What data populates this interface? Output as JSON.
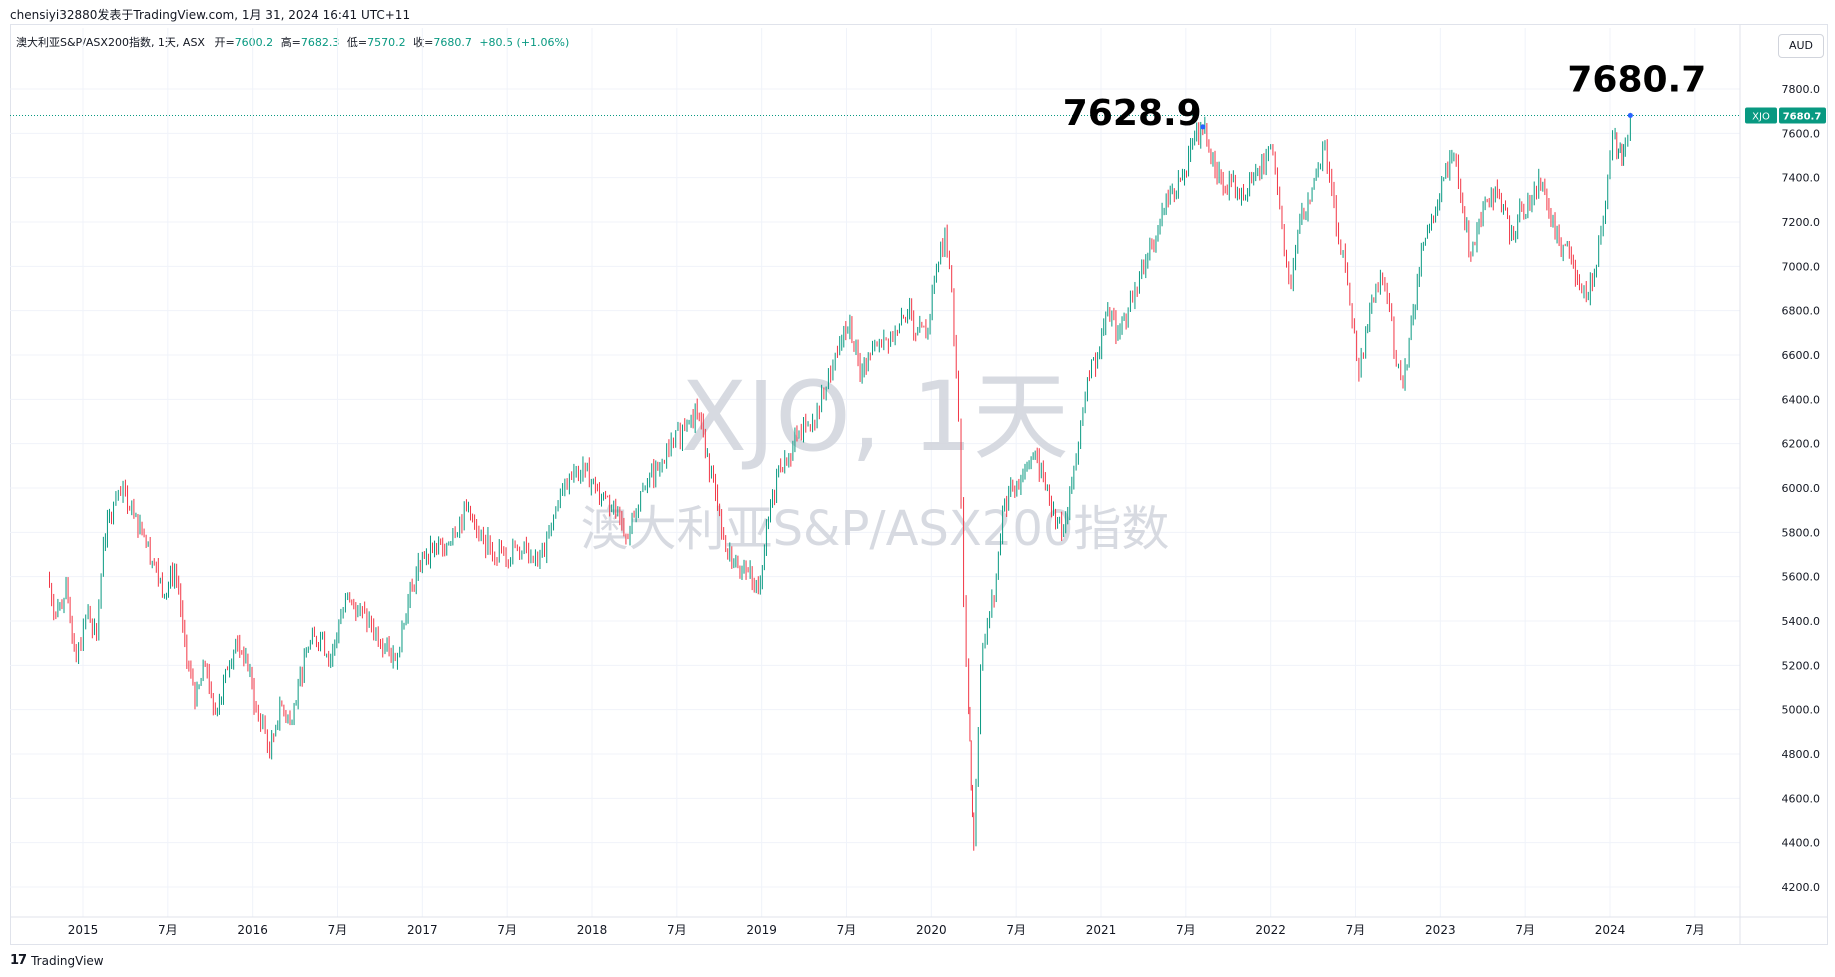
{
  "header": {
    "publisher_line": "chensiyi32880发表于TradingView.com, 1月 31, 2024 16:41 UTC+11"
  },
  "legend": {
    "symbol_line": "澳大利亚S&P/ASX200指数, 1天, ASX",
    "open_label": "开=",
    "open_value": "7600.2",
    "high_label": "高=",
    "high_value": "7682.3",
    "low_label": "低=",
    "low_value": "7570.2",
    "close_label": "收=",
    "close_value": "7680.7",
    "change_value": "+80.5 (+1.06%)"
  },
  "currency_button": "AUD",
  "watermark": {
    "line1": "XJO, 1天",
    "line2": "澳大利亚S&P/ASX200指数"
  },
  "price_tag": {
    "symbol": "XJO",
    "value": "7680.7"
  },
  "footer": {
    "logo": "17",
    "brand": "TradingView"
  },
  "colors": {
    "up": "#089981",
    "down": "#f23645",
    "grid": "#f0f3fa",
    "watermark": "#d1d4dc",
    "tag": "#089981"
  },
  "chart_data": {
    "type": "line",
    "title": "",
    "yaxis": {
      "min": 4200,
      "max": 7800,
      "ticks": [
        4200,
        4400,
        4600,
        4800,
        5000,
        5200,
        5400,
        5600,
        5800,
        6000,
        6200,
        6400,
        6600,
        6800,
        7000,
        7200,
        7400,
        7600,
        7800
      ]
    },
    "x_tick_labels": [
      {
        "t": 2015.0,
        "label": "2015"
      },
      {
        "t": 2015.5,
        "label": "7月"
      },
      {
        "t": 2016.0,
        "label": "2016"
      },
      {
        "t": 2016.5,
        "label": "7月"
      },
      {
        "t": 2017.0,
        "label": "2017"
      },
      {
        "t": 2017.5,
        "label": "7月"
      },
      {
        "t": 2018.0,
        "label": "2018"
      },
      {
        "t": 2018.5,
        "label": "7月"
      },
      {
        "t": 2019.0,
        "label": "2019"
      },
      {
        "t": 2019.5,
        "label": "7月"
      },
      {
        "t": 2020.0,
        "label": "2020"
      },
      {
        "t": 2020.5,
        "label": "7月"
      },
      {
        "t": 2021.0,
        "label": "2021"
      },
      {
        "t": 2021.5,
        "label": "7月"
      },
      {
        "t": 2022.0,
        "label": "2022"
      },
      {
        "t": 2022.5,
        "label": "7月"
      },
      {
        "t": 2023.0,
        "label": "2023"
      },
      {
        "t": 2023.5,
        "label": "7月"
      },
      {
        "t": 2024.0,
        "label": "2024"
      },
      {
        "t": 2024.5,
        "label": "7月"
      }
    ],
    "series": [
      {
        "values": [
          [
            2014.79,
            5600
          ],
          [
            2014.84,
            5420
          ],
          [
            2014.9,
            5560
          ],
          [
            2014.96,
            5220
          ],
          [
            2015.03,
            5450
          ],
          [
            2015.08,
            5330
          ],
          [
            2015.12,
            5750
          ],
          [
            2015.18,
            5930
          ],
          [
            2015.25,
            5980
          ],
          [
            2015.3,
            5870
          ],
          [
            2015.36,
            5780
          ],
          [
            2015.42,
            5650
          ],
          [
            2015.48,
            5520
          ],
          [
            2015.54,
            5640
          ],
          [
            2015.6,
            5300
          ],
          [
            2015.66,
            5020
          ],
          [
            2015.72,
            5200
          ],
          [
            2015.78,
            4980
          ],
          [
            2015.84,
            5180
          ],
          [
            2015.9,
            5300
          ],
          [
            2015.96,
            5240
          ],
          [
            2016.02,
            5000
          ],
          [
            2016.06,
            4950
          ],
          [
            2016.1,
            4810
          ],
          [
            2016.16,
            5020
          ],
          [
            2016.22,
            4950
          ],
          [
            2016.28,
            5160
          ],
          [
            2016.34,
            5300
          ],
          [
            2016.4,
            5330
          ],
          [
            2016.46,
            5220
          ],
          [
            2016.52,
            5420
          ],
          [
            2016.56,
            5500
          ],
          [
            2016.62,
            5450
          ],
          [
            2016.7,
            5380
          ],
          [
            2016.78,
            5290
          ],
          [
            2016.84,
            5220
          ],
          [
            2016.88,
            5380
          ],
          [
            2016.94,
            5560
          ],
          [
            2017.0,
            5700
          ],
          [
            2017.06,
            5720
          ],
          [
            2017.12,
            5730
          ],
          [
            2017.18,
            5800
          ],
          [
            2017.26,
            5900
          ],
          [
            2017.32,
            5800
          ],
          [
            2017.4,
            5730
          ],
          [
            2017.48,
            5700
          ],
          [
            2017.56,
            5720
          ],
          [
            2017.64,
            5690
          ],
          [
            2017.72,
            5700
          ],
          [
            2017.8,
            5940
          ],
          [
            2017.88,
            6040
          ],
          [
            2017.96,
            6080
          ],
          [
            2018.02,
            6000
          ],
          [
            2018.08,
            5960
          ],
          [
            2018.14,
            5900
          ],
          [
            2018.2,
            5780
          ],
          [
            2018.26,
            5890
          ],
          [
            2018.34,
            6050
          ],
          [
            2018.4,
            6100
          ],
          [
            2018.48,
            6200
          ],
          [
            2018.56,
            6300
          ],
          [
            2018.62,
            6330
          ],
          [
            2018.68,
            6150
          ],
          [
            2018.74,
            5900
          ],
          [
            2018.8,
            5700
          ],
          [
            2018.86,
            5650
          ],
          [
            2018.92,
            5620
          ],
          [
            2018.98,
            5550
          ],
          [
            2019.04,
            5850
          ],
          [
            2019.1,
            6100
          ],
          [
            2019.16,
            6150
          ],
          [
            2019.22,
            6250
          ],
          [
            2019.3,
            6300
          ],
          [
            2019.38,
            6450
          ],
          [
            2019.46,
            6650
          ],
          [
            2019.52,
            6750
          ],
          [
            2019.58,
            6500
          ],
          [
            2019.64,
            6600
          ],
          [
            2019.72,
            6680
          ],
          [
            2019.8,
            6700
          ],
          [
            2019.86,
            6800
          ],
          [
            2019.92,
            6700
          ],
          [
            2019.98,
            6700
          ],
          [
            2020.03,
            7000
          ],
          [
            2020.08,
            7150
          ],
          [
            2020.12,
            6900
          ],
          [
            2020.16,
            6300
          ],
          [
            2020.19,
            5500
          ],
          [
            2020.22,
            5000
          ],
          [
            2020.235,
            4650
          ],
          [
            2020.25,
            4400
          ],
          [
            2020.29,
            5200
          ],
          [
            2020.33,
            5400
          ],
          [
            2020.37,
            5500
          ],
          [
            2020.42,
            5900
          ],
          [
            2020.48,
            6000
          ],
          [
            2020.54,
            6050
          ],
          [
            2020.6,
            6150
          ],
          [
            2020.66,
            6050
          ],
          [
            2020.72,
            5900
          ],
          [
            2020.78,
            5800
          ],
          [
            2020.84,
            6100
          ],
          [
            2020.88,
            6300
          ],
          [
            2020.92,
            6500
          ],
          [
            2020.98,
            6600
          ],
          [
            2021.04,
            6800
          ],
          [
            2021.1,
            6700
          ],
          [
            2021.16,
            6800
          ],
          [
            2021.24,
            7000
          ],
          [
            2021.3,
            7100
          ],
          [
            2021.36,
            7250
          ],
          [
            2021.42,
            7350
          ],
          [
            2021.48,
            7400
          ],
          [
            2021.54,
            7550
          ],
          [
            2021.6,
            7628.9
          ],
          [
            2021.66,
            7500
          ],
          [
            2021.72,
            7350
          ],
          [
            2021.78,
            7400
          ],
          [
            2021.84,
            7300
          ],
          [
            2021.9,
            7400
          ],
          [
            2021.96,
            7450
          ],
          [
            2022.0,
            7550
          ],
          [
            2022.04,
            7350
          ],
          [
            2022.08,
            7050
          ],
          [
            2022.12,
            6900
          ],
          [
            2022.16,
            7150
          ],
          [
            2022.22,
            7300
          ],
          [
            2022.28,
            7450
          ],
          [
            2022.32,
            7550
          ],
          [
            2022.36,
            7350
          ],
          [
            2022.4,
            7100
          ],
          [
            2022.44,
            7000
          ],
          [
            2022.48,
            6750
          ],
          [
            2022.52,
            6500
          ],
          [
            2022.56,
            6700
          ],
          [
            2022.62,
            6900
          ],
          [
            2022.66,
            6950
          ],
          [
            2022.7,
            6800
          ],
          [
            2022.74,
            6550
          ],
          [
            2022.78,
            6450
          ],
          [
            2022.84,
            6800
          ],
          [
            2022.9,
            7100
          ],
          [
            2022.96,
            7200
          ],
          [
            2023.02,
            7400
          ],
          [
            2023.08,
            7500
          ],
          [
            2023.12,
            7300
          ],
          [
            2023.18,
            7050
          ],
          [
            2023.24,
            7200
          ],
          [
            2023.3,
            7350
          ],
          [
            2023.36,
            7250
          ],
          [
            2023.42,
            7150
          ],
          [
            2023.48,
            7250
          ],
          [
            2023.54,
            7300
          ],
          [
            2023.58,
            7400
          ],
          [
            2023.64,
            7250
          ],
          [
            2023.7,
            7100
          ],
          [
            2023.76,
            7050
          ],
          [
            2023.82,
            6900
          ],
          [
            2023.86,
            6850
          ],
          [
            2023.92,
            7000
          ],
          [
            2023.96,
            7200
          ],
          [
            2024.0,
            7500
          ],
          [
            2024.03,
            7600
          ],
          [
            2024.05,
            7520
          ],
          [
            2024.07,
            7480
          ],
          [
            2024.09,
            7560
          ],
          [
            2024.12,
            7680.7
          ]
        ]
      }
    ],
    "annotations": [
      {
        "text": "7628.9",
        "t": 2021.6,
        "v": 7628.9
      },
      {
        "text": "7680.7",
        "t": 2024.12,
        "v": 7680.7
      }
    ]
  }
}
